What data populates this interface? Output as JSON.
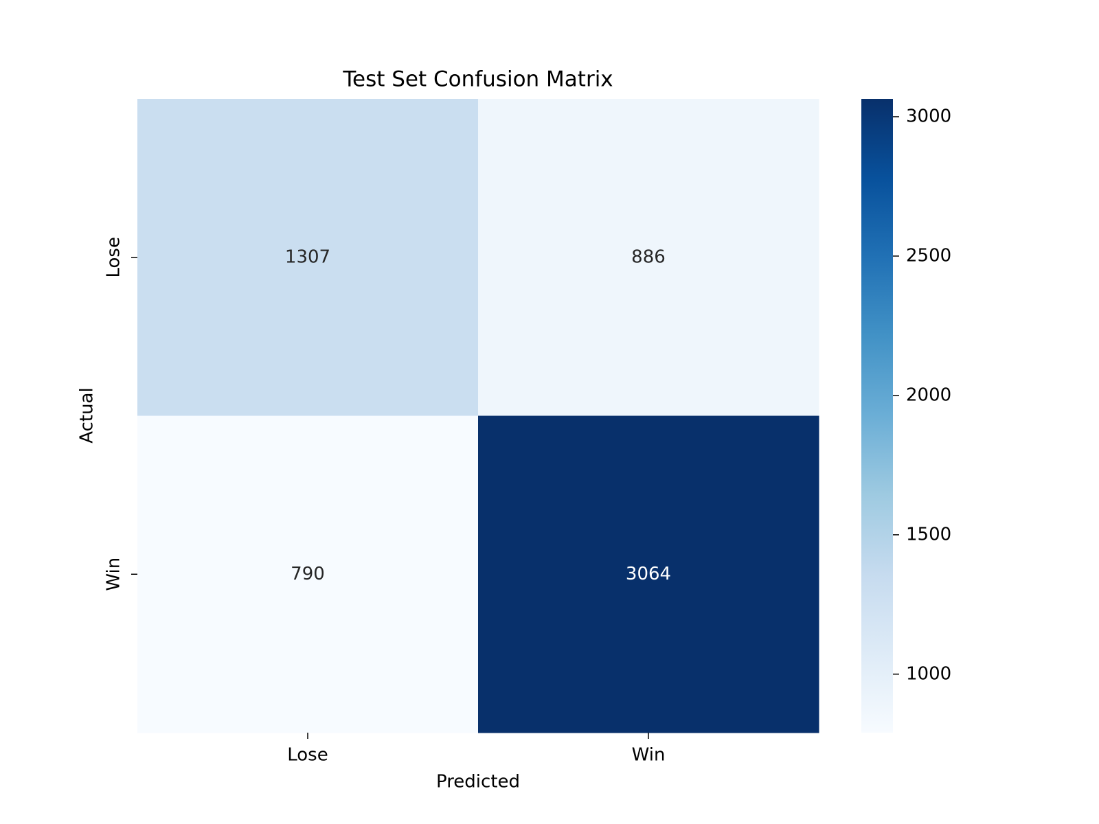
{
  "chart_data": {
    "type": "heatmap",
    "title": "Test Set Confusion Matrix",
    "x_label": "Predicted",
    "y_label": "Actual",
    "x_categories": [
      "Lose",
      "Win"
    ],
    "y_categories": [
      "Lose",
      "Win"
    ],
    "values": [
      [
        1307,
        886
      ],
      [
        790,
        3064
      ]
    ],
    "colormap": "Blues",
    "zlim": [
      790,
      3064
    ],
    "zticks": [
      1000,
      1500,
      2000,
      2500,
      3000
    ]
  }
}
